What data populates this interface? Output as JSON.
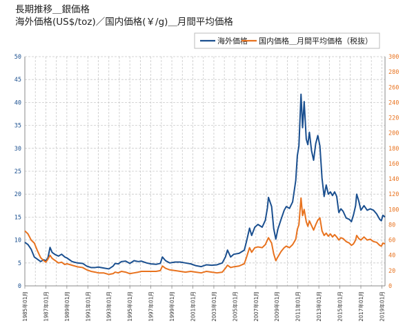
{
  "chart_data": {
    "type": "line",
    "title": "長期推移＿銀価格",
    "subtitle": "海外価格(US$/toz)／国内価格(￥/g)＿月間平均価格",
    "x_tick_labels": [
      "1985年01月",
      "1987年01月",
      "1989年01月",
      "1991年01月",
      "1993年01月",
      "1995年01月",
      "1997年01月",
      "1999年01月",
      "2001年01月",
      "2003年01月",
      "2005年01月",
      "2007年01月",
      "2009年01月",
      "2011年01月",
      "2013年01月",
      "2015年01月",
      "2017年01月",
      "2019年01月"
    ],
    "x_range": [
      1985.0,
      2019.3
    ],
    "y_left": {
      "min": 0,
      "max": 50,
      "step": 5
    },
    "y_right": {
      "min": 0,
      "max": 300,
      "step": 20
    },
    "grid": true,
    "legend_position": "top-right",
    "series": [
      {
        "name": "海外価格",
        "axis": "left",
        "color": "#1a4f8f",
        "points": [
          [
            1985.0,
            9.5
          ],
          [
            1985.3,
            9.0
          ],
          [
            1985.6,
            8.0
          ],
          [
            1985.9,
            6.3
          ],
          [
            1986.2,
            5.8
          ],
          [
            1986.5,
            5.3
          ],
          [
            1986.8,
            5.7
          ],
          [
            1987.0,
            5.5
          ],
          [
            1987.2,
            6.1
          ],
          [
            1987.4,
            8.4
          ],
          [
            1987.6,
            7.3
          ],
          [
            1987.9,
            6.8
          ],
          [
            1988.2,
            6.5
          ],
          [
            1988.5,
            6.9
          ],
          [
            1988.8,
            6.3
          ],
          [
            1989.0,
            6.1
          ],
          [
            1989.5,
            5.3
          ],
          [
            1990.0,
            5.0
          ],
          [
            1990.5,
            4.9
          ],
          [
            1990.9,
            4.3
          ],
          [
            1991.3,
            4.0
          ],
          [
            1991.7,
            4.0
          ],
          [
            1992.0,
            4.1
          ],
          [
            1992.5,
            3.9
          ],
          [
            1993.0,
            3.7
          ],
          [
            1993.4,
            4.3
          ],
          [
            1993.6,
            4.9
          ],
          [
            1993.9,
            4.8
          ],
          [
            1994.2,
            5.3
          ],
          [
            1994.6,
            5.4
          ],
          [
            1995.0,
            4.9
          ],
          [
            1995.4,
            5.5
          ],
          [
            1995.8,
            5.3
          ],
          [
            1996.1,
            5.4
          ],
          [
            1996.6,
            5.0
          ],
          [
            1997.0,
            4.8
          ],
          [
            1997.5,
            4.7
          ],
          [
            1997.9,
            4.9
          ],
          [
            1998.1,
            6.3
          ],
          [
            1998.4,
            5.5
          ],
          [
            1998.8,
            5.0
          ],
          [
            1999.3,
            5.2
          ],
          [
            1999.8,
            5.2
          ],
          [
            2000.3,
            5.0
          ],
          [
            2000.8,
            4.8
          ],
          [
            2001.3,
            4.4
          ],
          [
            2001.8,
            4.2
          ],
          [
            2002.3,
            4.6
          ],
          [
            2002.8,
            4.5
          ],
          [
            2003.3,
            4.6
          ],
          [
            2003.8,
            5.0
          ],
          [
            2004.1,
            6.3
          ],
          [
            2004.3,
            7.8
          ],
          [
            2004.6,
            6.3
          ],
          [
            2004.9,
            6.9
          ],
          [
            2005.4,
            7.1
          ],
          [
            2005.9,
            7.8
          ],
          [
            2006.1,
            9.6
          ],
          [
            2006.4,
            12.6
          ],
          [
            2006.6,
            11.0
          ],
          [
            2006.9,
            12.8
          ],
          [
            2007.2,
            13.4
          ],
          [
            2007.6,
            12.8
          ],
          [
            2007.9,
            14.3
          ],
          [
            2008.1,
            17.0
          ],
          [
            2008.2,
            19.3
          ],
          [
            2008.5,
            17.3
          ],
          [
            2008.7,
            12.5
          ],
          [
            2008.9,
            10.2
          ],
          [
            2009.1,
            12.4
          ],
          [
            2009.4,
            14.5
          ],
          [
            2009.7,
            16.5
          ],
          [
            2009.9,
            17.3
          ],
          [
            2010.2,
            16.9
          ],
          [
            2010.5,
            18.3
          ],
          [
            2010.8,
            23.0
          ],
          [
            2010.95,
            28.4
          ],
          [
            2011.1,
            30.5
          ],
          [
            2011.3,
            41.8
          ],
          [
            2011.45,
            34.5
          ],
          [
            2011.6,
            40.2
          ],
          [
            2011.8,
            32.0
          ],
          [
            2011.95,
            30.8
          ],
          [
            2012.1,
            33.5
          ],
          [
            2012.3,
            29.5
          ],
          [
            2012.5,
            27.4
          ],
          [
            2012.7,
            31.0
          ],
          [
            2012.9,
            32.8
          ],
          [
            2013.1,
            30.5
          ],
          [
            2013.3,
            23.5
          ],
          [
            2013.5,
            19.5
          ],
          [
            2013.7,
            22.0
          ],
          [
            2013.9,
            20.0
          ],
          [
            2014.1,
            20.5
          ],
          [
            2014.3,
            19.7
          ],
          [
            2014.5,
            20.5
          ],
          [
            2014.7,
            19.5
          ],
          [
            2014.9,
            16.0
          ],
          [
            2015.1,
            16.8
          ],
          [
            2015.3,
            16.3
          ],
          [
            2015.6,
            14.8
          ],
          [
            2015.9,
            14.5
          ],
          [
            2016.1,
            14.0
          ],
          [
            2016.3,
            15.5
          ],
          [
            2016.5,
            17.5
          ],
          [
            2016.6,
            20.0
          ],
          [
            2016.8,
            18.5
          ],
          [
            2017.0,
            16.5
          ],
          [
            2017.3,
            17.5
          ],
          [
            2017.6,
            16.5
          ],
          [
            2017.9,
            16.8
          ],
          [
            2018.2,
            16.5
          ],
          [
            2018.5,
            15.7
          ],
          [
            2018.8,
            14.5
          ],
          [
            2018.95,
            14.2
          ],
          [
            2019.1,
            15.4
          ],
          [
            2019.3,
            15.0
          ]
        ]
      },
      {
        "name": "国内価格＿月間平均価格（税抜）",
        "axis": "right",
        "color": "#e8721e",
        "points": [
          [
            1985.0,
            72
          ],
          [
            1985.3,
            68
          ],
          [
            1985.6,
            60
          ],
          [
            1985.9,
            56
          ],
          [
            1986.2,
            46
          ],
          [
            1986.5,
            37
          ],
          [
            1986.8,
            33
          ],
          [
            1987.0,
            31
          ],
          [
            1987.2,
            35
          ],
          [
            1987.4,
            40
          ],
          [
            1987.6,
            36
          ],
          [
            1987.9,
            33
          ],
          [
            1988.2,
            30
          ],
          [
            1988.5,
            31
          ],
          [
            1988.8,
            28
          ],
          [
            1989.0,
            29
          ],
          [
            1989.5,
            27
          ],
          [
            1990.0,
            25
          ],
          [
            1990.5,
            24
          ],
          [
            1990.9,
            21
          ],
          [
            1991.3,
            19
          ],
          [
            1991.7,
            18
          ],
          [
            1992.0,
            17
          ],
          [
            1992.5,
            17
          ],
          [
            1993.0,
            15
          ],
          [
            1993.4,
            16
          ],
          [
            1993.6,
            18
          ],
          [
            1993.9,
            17
          ],
          [
            1994.2,
            19
          ],
          [
            1994.6,
            18
          ],
          [
            1995.0,
            16
          ],
          [
            1995.4,
            17
          ],
          [
            1995.8,
            18
          ],
          [
            1996.1,
            19
          ],
          [
            1996.6,
            19
          ],
          [
            1997.0,
            19
          ],
          [
            1997.5,
            19
          ],
          [
            1997.9,
            20
          ],
          [
            1998.1,
            26
          ],
          [
            1998.4,
            23
          ],
          [
            1998.8,
            21
          ],
          [
            1999.3,
            20
          ],
          [
            1999.8,
            19
          ],
          [
            2000.3,
            18
          ],
          [
            2000.8,
            19
          ],
          [
            2001.3,
            18
          ],
          [
            2001.8,
            17
          ],
          [
            2002.3,
            19
          ],
          [
            2002.8,
            18
          ],
          [
            2003.3,
            17
          ],
          [
            2003.8,
            18
          ],
          [
            2004.1,
            23
          ],
          [
            2004.3,
            27
          ],
          [
            2004.6,
            24
          ],
          [
            2004.9,
            25
          ],
          [
            2005.4,
            26
          ],
          [
            2005.9,
            29
          ],
          [
            2006.1,
            37
          ],
          [
            2006.4,
            50
          ],
          [
            2006.6,
            44
          ],
          [
            2006.9,
            50
          ],
          [
            2007.2,
            51
          ],
          [
            2007.6,
            50
          ],
          [
            2007.9,
            54
          ],
          [
            2008.1,
            60
          ],
          [
            2008.2,
            63
          ],
          [
            2008.5,
            56
          ],
          [
            2008.7,
            42
          ],
          [
            2008.9,
            33
          ],
          [
            2009.1,
            38
          ],
          [
            2009.4,
            45
          ],
          [
            2009.7,
            50
          ],
          [
            2009.9,
            52
          ],
          [
            2010.2,
            50
          ],
          [
            2010.5,
            54
          ],
          [
            2010.8,
            61
          ],
          [
            2010.95,
            74
          ],
          [
            2011.1,
            80
          ],
          [
            2011.3,
            115
          ],
          [
            2011.45,
            92
          ],
          [
            2011.6,
            100
          ],
          [
            2011.8,
            84
          ],
          [
            2011.95,
            78
          ],
          [
            2012.1,
            85
          ],
          [
            2012.3,
            79
          ],
          [
            2012.5,
            73
          ],
          [
            2012.7,
            80
          ],
          [
            2012.9,
            86
          ],
          [
            2013.1,
            89
          ],
          [
            2013.3,
            72
          ],
          [
            2013.5,
            66
          ],
          [
            2013.7,
            69
          ],
          [
            2013.9,
            65
          ],
          [
            2014.1,
            68
          ],
          [
            2014.3,
            64
          ],
          [
            2014.5,
            67
          ],
          [
            2014.7,
            64
          ],
          [
            2014.9,
            60
          ],
          [
            2015.1,
            63
          ],
          [
            2015.3,
            62
          ],
          [
            2015.6,
            58
          ],
          [
            2015.9,
            56
          ],
          [
            2016.1,
            53
          ],
          [
            2016.3,
            55
          ],
          [
            2016.5,
            60
          ],
          [
            2016.6,
            66
          ],
          [
            2016.8,
            62
          ],
          [
            2017.0,
            60
          ],
          [
            2017.3,
            64
          ],
          [
            2017.6,
            60
          ],
          [
            2017.9,
            61
          ],
          [
            2018.2,
            58
          ],
          [
            2018.5,
            57
          ],
          [
            2018.8,
            53
          ],
          [
            2018.95,
            52
          ],
          [
            2019.1,
            56
          ],
          [
            2019.3,
            55
          ]
        ]
      }
    ]
  }
}
